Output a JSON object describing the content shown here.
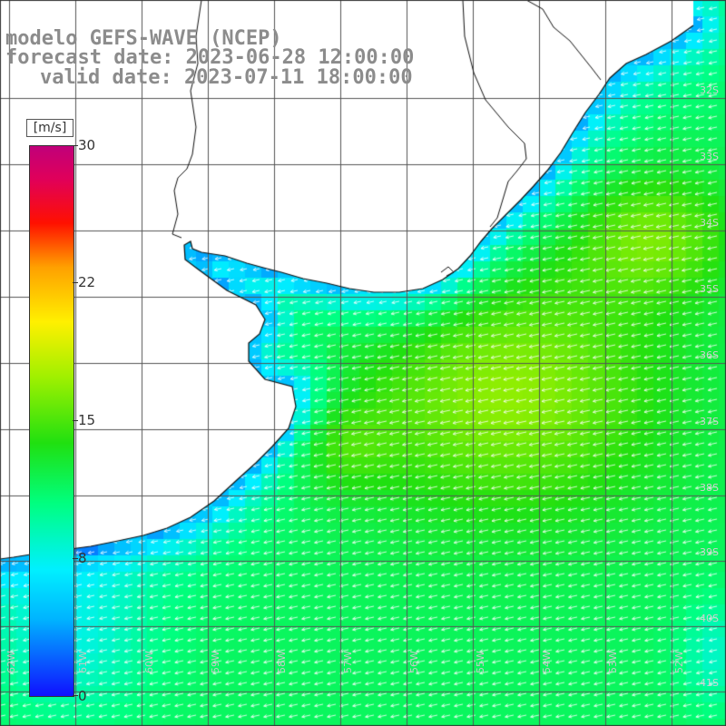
{
  "title": {
    "model": "modelo GEFS-WAVE (NCEP)",
    "forecast": "forecast date: 2023-06-28 12:00:00",
    "valid": "valid date: 2023-07-11 18:00:00"
  },
  "colorbar": {
    "unit": "[m/s]",
    "ticks": [
      "30",
      "22",
      "15",
      "8",
      "0"
    ],
    "min": 0,
    "max": 30,
    "colors": [
      "#1010ff",
      "#00b4ff",
      "#00f0ff",
      "#00ff80",
      "#20e010",
      "#a0f000",
      "#fff000",
      "#ffa000",
      "#ff1000",
      "#c0007a"
    ]
  },
  "lat_labels": [
    "32S",
    "33S",
    "34S",
    "35S",
    "36S",
    "37S",
    "38S",
    "39S",
    "40S",
    "41S"
  ],
  "lon_labels": [
    "62W",
    "61W",
    "60W",
    "59W",
    "58W",
    "57W",
    "56W",
    "55W",
    "54W",
    "53W",
    "52W"
  ],
  "field": {
    "variable": "wind speed",
    "units": "m/s",
    "prevailing_direction": "from northeast",
    "max_speed_approx": 16,
    "land_color": "#ffffff",
    "grid_color": "#555555",
    "arrow_color": "#ffffff"
  }
}
